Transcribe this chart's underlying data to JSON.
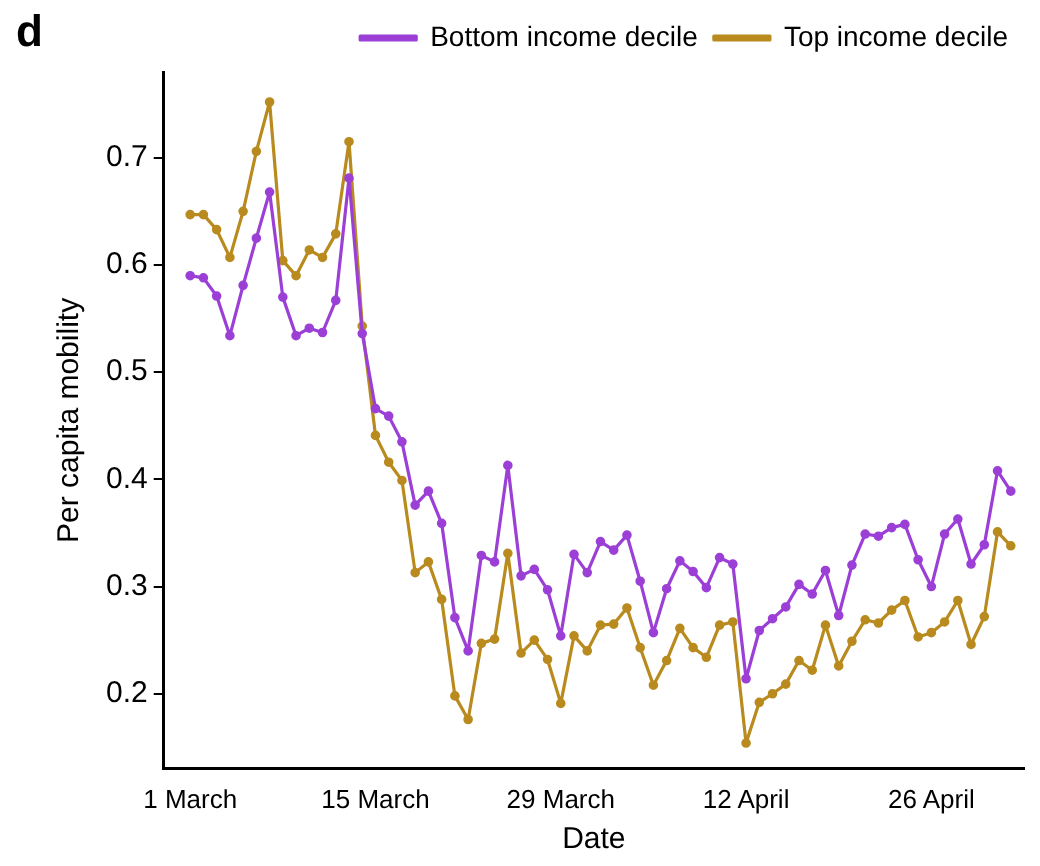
{
  "chart_data": {
    "type": "line",
    "title": "d",
    "xlabel": "Date",
    "ylabel": "Per capita mobility",
    "x": [
      "--03-01",
      "--03-02",
      "--03-03",
      "--03-04",
      "--03-05",
      "--03-06",
      "--03-07",
      "--03-08",
      "--03-09",
      "--03-10",
      "--03-11",
      "--03-12",
      "--03-13",
      "--03-14",
      "--03-15",
      "--03-16",
      "--03-17",
      "--03-18",
      "--03-19",
      "--03-20",
      "--03-21",
      "--03-22",
      "--03-23",
      "--03-24",
      "--03-25",
      "--03-26",
      "--03-27",
      "--03-28",
      "--03-29",
      "--03-30",
      "--03-31",
      "--04-01",
      "--04-02",
      "--04-03",
      "--04-04",
      "--04-05",
      "--04-06",
      "--04-07",
      "--04-08",
      "--04-09",
      "--04-10",
      "--04-11",
      "--04-12",
      "--04-13",
      "--04-14",
      "--04-15",
      "--04-16",
      "--04-17",
      "--04-18",
      "--04-19",
      "--04-20",
      "--04-21",
      "--04-22",
      "--04-23",
      "--04-24",
      "--04-25",
      "--04-26",
      "--04-27",
      "--04-28",
      "--04-29",
      "--04-30",
      "--05-01",
      "--05-02"
    ],
    "series": [
      {
        "name": "Bottom income decile",
        "color": "#9b3fd6",
        "values": [
          0.59,
          0.588,
          0.571,
          0.534,
          0.581,
          0.625,
          0.668,
          0.57,
          0.534,
          0.541,
          0.537,
          0.567,
          0.681,
          0.536,
          0.466,
          0.459,
          0.435,
          0.376,
          0.389,
          0.359,
          0.271,
          0.24,
          0.329,
          0.323,
          0.413,
          0.31,
          0.316,
          0.297,
          0.254,
          0.33,
          0.313,
          0.342,
          0.334,
          0.348,
          0.305,
          0.257,
          0.298,
          0.324,
          0.314,
          0.299,
          0.327,
          0.321,
          0.214,
          0.259,
          0.27,
          0.281,
          0.302,
          0.293,
          0.315,
          0.273,
          0.32,
          0.349,
          0.347,
          0.355,
          0.358,
          0.325,
          0.3,
          0.349,
          0.363,
          0.321,
          0.339,
          0.408,
          0.389
        ]
      },
      {
        "name": "Top income decile",
        "color": "#b98a1e",
        "values": [
          0.647,
          0.647,
          0.633,
          0.607,
          0.65,
          0.706,
          0.752,
          0.604,
          0.59,
          0.614,
          0.607,
          0.629,
          0.715,
          0.543,
          0.441,
          0.416,
          0.399,
          0.313,
          0.323,
          0.288,
          0.198,
          0.176,
          0.247,
          0.251,
          0.331,
          0.238,
          0.25,
          0.232,
          0.191,
          0.254,
          0.24,
          0.264,
          0.265,
          0.28,
          0.243,
          0.208,
          0.231,
          0.261,
          0.243,
          0.234,
          0.264,
          0.267,
          0.154,
          0.192,
          0.2,
          0.209,
          0.231,
          0.222,
          0.264,
          0.226,
          0.249,
          0.269,
          0.266,
          0.278,
          0.287,
          0.253,
          0.257,
          0.267,
          0.287,
          0.246,
          0.272,
          0.351,
          0.338
        ]
      }
    ],
    "xlim": [
      "--02-27",
      "--05-03"
    ],
    "xticks": [
      {
        "value": "--03-01",
        "label": "1 March"
      },
      {
        "value": "--03-15",
        "label": "15 March"
      },
      {
        "value": "--03-29",
        "label": "29 March"
      },
      {
        "value": "--04-12",
        "label": "12 April"
      },
      {
        "value": "--04-26",
        "label": "26 April"
      }
    ],
    "ylim": [
      0.13,
      0.78
    ],
    "yticks": [
      0.2,
      0.3,
      0.4,
      0.5,
      0.6,
      0.7
    ],
    "grid": false,
    "legend": "top right",
    "marker": "circle",
    "line_style": "solid"
  }
}
